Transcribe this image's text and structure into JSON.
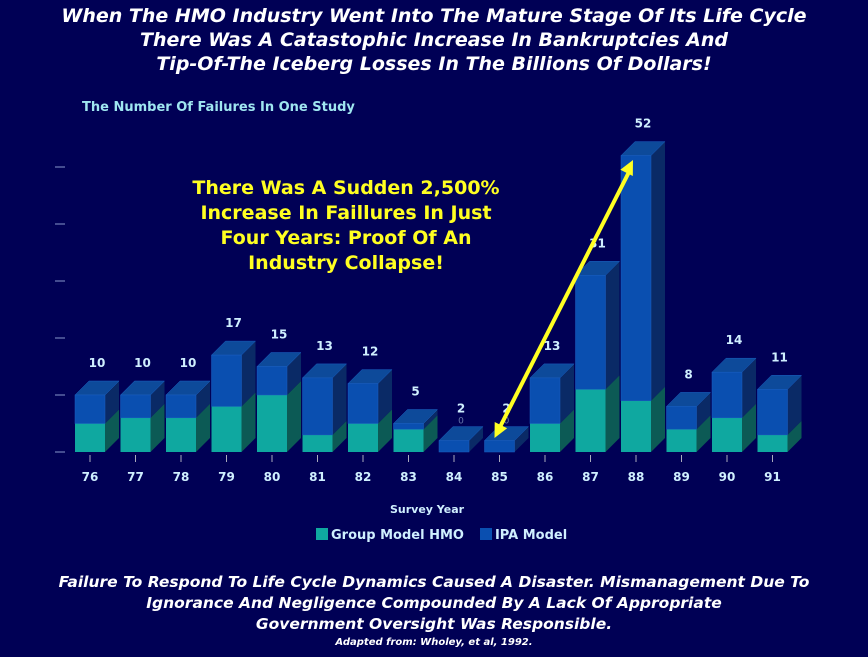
{
  "title": [
    "When The HMO Industry Went Into The Mature Stage Of Its Life Cycle",
    "There Was A Catastophic Increase In Bankruptcies And",
    "Tip-Of-The Iceberg Losses In The Billions Of Dollars!"
  ],
  "annotation": [
    "There Was A Sudden 2,500%",
    "Increase In Faillures In Just",
    "Four Years: Proof Of An",
    "Industry Collapse!"
  ],
  "footer": [
    "Failure To Respond To Life Cycle Dynamics Caused A Disaster. Mismanagement Due To",
    "Ignorance And Negligence Compounded By A Lack Of Appropriate",
    "Government Oversight Was Responsible."
  ],
  "source": "Adapted from: Wholey, et al, 1992.",
  "colors": {
    "group": "#0fa8a0",
    "ipa": "#0a4fb0",
    "arrow": "#ffff22"
  },
  "chart_data": {
    "type": "bar",
    "stacked": true,
    "title": "The Number Of Failures In One Study",
    "xlabel": "Survey Year",
    "ylabel": "",
    "ylim": [
      0,
      50
    ],
    "y_ticks": [
      0,
      10,
      20,
      30,
      40,
      50
    ],
    "categories": [
      "76",
      "77",
      "78",
      "79",
      "80",
      "81",
      "82",
      "83",
      "84",
      "85",
      "86",
      "87",
      "88",
      "89",
      "90",
      "91"
    ],
    "series": [
      {
        "name": "Group Model HMO",
        "values": [
          5,
          6,
          6,
          8,
          10,
          3,
          5,
          4,
          0,
          0,
          5,
          11,
          9,
          4,
          6,
          3
        ]
      },
      {
        "name": "IPA Model",
        "values": [
          5,
          4,
          4,
          9,
          5,
          10,
          7,
          1,
          2,
          2,
          8,
          20,
          43,
          4,
          8,
          8
        ]
      }
    ],
    "totals": [
      10,
      10,
      10,
      17,
      15,
      13,
      12,
      5,
      2,
      2,
      13,
      31,
      52,
      8,
      14,
      11
    ],
    "zero_labels": {
      "84": "0",
      "85": "0"
    },
    "legend_position": "bottom",
    "annotation_arrow": {
      "from": "85",
      "to": "88"
    }
  }
}
